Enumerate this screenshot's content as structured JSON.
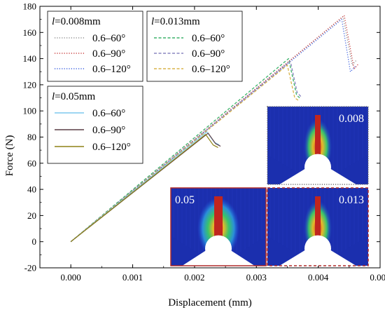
{
  "chart_data": {
    "type": "line",
    "title": "",
    "xlabel": "Displacement (mm)",
    "ylabel": "Force (N)",
    "xlim": [
      -0.0005,
      0.005
    ],
    "ylim": [
      -20,
      180
    ],
    "xticks": [
      "0.000",
      "0.001",
      "0.002",
      "0.003",
      "0.004",
      "0.005"
    ],
    "yticks": [
      "-20",
      "0",
      "20",
      "40",
      "60",
      "80",
      "100",
      "120",
      "140",
      "160",
      "180"
    ],
    "grid": false,
    "legend_groups": [
      {
        "title_italic": "l",
        "title_rest": "=0.008mm",
        "placement": "top-left",
        "entries": [
          "0.6–60°",
          "0.6–90°",
          "0.6–120°"
        ]
      },
      {
        "title_italic": "l",
        "title_rest": "=0.013mm",
        "placement": "top-center",
        "entries": [
          "0.6–60°",
          "0.6–90°",
          "0.6–120°"
        ]
      },
      {
        "title_italic": "l",
        "title_rest": "=0.05mm",
        "placement": "middle-left",
        "entries": [
          "0.6–60°",
          "0.6–90°",
          "0.6–120°"
        ]
      }
    ],
    "series": [
      {
        "group": 0,
        "color": "#8f8f8f",
        "dash": "dotted",
        "x": [
          0,
          0.0044,
          0.00455,
          0.00462
        ],
        "y": [
          0,
          172,
          135,
          139
        ]
      },
      {
        "group": 0,
        "color": "#c83c3c",
        "dash": "dotted",
        "x": [
          0,
          0.00442,
          0.00458,
          0.00465
        ],
        "y": [
          0,
          173,
          132,
          136
        ]
      },
      {
        "group": 0,
        "color": "#3a5fe0",
        "dash": "dotted",
        "x": [
          0,
          0.00438,
          0.00452,
          0.0046
        ],
        "y": [
          0,
          170,
          130,
          134
        ]
      },
      {
        "group": 1,
        "color": "#3cb26a",
        "dash": "dashed",
        "x": [
          0,
          0.00352,
          0.00365,
          0.0037
        ],
        "y": [
          0,
          140,
          112,
          110
        ]
      },
      {
        "group": 1,
        "color": "#8a86c0",
        "dash": "dashed",
        "x": [
          0,
          0.00355,
          0.00366,
          0.00372
        ],
        "y": [
          0,
          138,
          114,
          111
        ]
      },
      {
        "group": 1,
        "color": "#d8b44a",
        "dash": "dashed",
        "x": [
          0,
          0.0035,
          0.00362,
          0.00368
        ],
        "y": [
          0,
          135,
          110,
          108
        ]
      },
      {
        "group": 2,
        "color": "#7dc8ee",
        "dash": "solid",
        "x": [
          0,
          0.0022,
          0.00232,
          0.0024
        ],
        "y": [
          0,
          84,
          76,
          74
        ]
      },
      {
        "group": 2,
        "color": "#5c3f46",
        "dash": "solid",
        "x": [
          0,
          0.00222,
          0.00234,
          0.00242
        ],
        "y": [
          0,
          83,
          75,
          73
        ]
      },
      {
        "group": 2,
        "color": "#8e8216",
        "dash": "solid",
        "x": [
          0,
          0.00218,
          0.0023,
          0.00238
        ],
        "y": [
          0,
          82,
          74,
          72
        ]
      }
    ],
    "inset_images": [
      {
        "label": "0.008",
        "frame_color": "#6e6e6e",
        "frame_style": "dotted"
      },
      {
        "label": "0.05",
        "frame_color": "#b02a2a",
        "frame_style": "solid"
      },
      {
        "label": "0.013",
        "frame_color": "#b02a2a",
        "frame_style": "dashed"
      }
    ]
  }
}
